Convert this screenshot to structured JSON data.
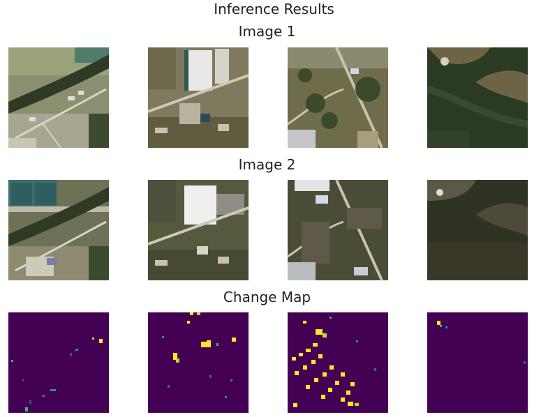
{
  "figure": {
    "title": "Inference Results"
  },
  "rows": [
    {
      "title": "Image 1",
      "kind": "satellite-before"
    },
    {
      "title": "Image 2",
      "kind": "satellite-after"
    },
    {
      "title": "Change Map",
      "kind": "change-map"
    }
  ],
  "colors": {
    "map_background": "#440154",
    "map_change": "#f0e442",
    "map_edge": "#21918c",
    "map_mid": "#3b528b"
  }
}
